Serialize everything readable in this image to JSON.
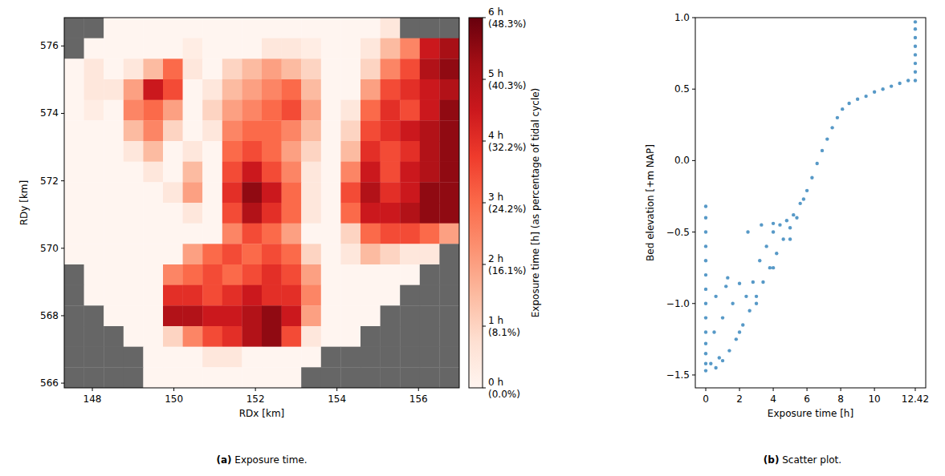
{
  "chart_data": [
    {
      "type": "heatmap",
      "caption": {
        "letter": "(a)",
        "text": "Exposure time."
      },
      "x_label": "RDx [km]",
      "y_label": "RDy [km]",
      "xlim": [
        147.31,
        157.0
      ],
      "ylim": [
        565.86,
        576.84
      ],
      "xticks": [
        148,
        150,
        152,
        154,
        156
      ],
      "yticks": [
        566,
        568,
        570,
        572,
        574,
        576
      ],
      "cells": [
        [
          null,
          null,
          0,
          0,
          0,
          0,
          0,
          0,
          0,
          0,
          0,
          0,
          0,
          0,
          0,
          0,
          0.5,
          null,
          null,
          null
        ],
        [
          null,
          0,
          0,
          0,
          0,
          0,
          0.3,
          0,
          0,
          0,
          0.5,
          0.5,
          0.3,
          0,
          0,
          0.5,
          1.5,
          2.5,
          4.5,
          5.2
        ],
        [
          0,
          0.5,
          0,
          0.5,
          1.5,
          3,
          0.5,
          0,
          1,
          1.5,
          2,
          1.5,
          1,
          0,
          0,
          1,
          2.5,
          3.5,
          5,
          5.5
        ],
        [
          0,
          0.5,
          0.5,
          2,
          4.5,
          3.5,
          0,
          0.5,
          1.5,
          2,
          2.5,
          3,
          1.5,
          0,
          0,
          2,
          3.5,
          4,
          4.5,
          5
        ],
        [
          0,
          0.3,
          0,
          2.5,
          3,
          2,
          0,
          1,
          2,
          2.5,
          3,
          3.5,
          2,
          0,
          0.5,
          3,
          4,
          3.5,
          4.5,
          5.5
        ],
        [
          0,
          0,
          0,
          1.5,
          2.5,
          1,
          0,
          0.5,
          2.5,
          3,
          3,
          2.5,
          1.5,
          0,
          1,
          3.5,
          4,
          4.5,
          5,
          5.5
        ],
        [
          0,
          0,
          0,
          0.5,
          1.5,
          0,
          0.5,
          0,
          3,
          3.5,
          3,
          2,
          1,
          0,
          1.5,
          4,
          3.5,
          4,
          5,
          5.5
        ],
        [
          0,
          0,
          0,
          0,
          0.5,
          0,
          1.5,
          0,
          3.5,
          4.5,
          3.5,
          2.5,
          0.5,
          0,
          2.5,
          4.5,
          3.5,
          4.5,
          5,
          5.5
        ],
        [
          0,
          0,
          0,
          0,
          0,
          0.5,
          2,
          0,
          4,
          5.5,
          4.5,
          3,
          0.5,
          0,
          3.5,
          5,
          4,
          4.5,
          5.5,
          5.5
        ],
        [
          0,
          0,
          0,
          0,
          0,
          0,
          0.5,
          0,
          3.5,
          5,
          4,
          3,
          0.5,
          0,
          3,
          4.5,
          4.5,
          5,
          5.5,
          5.5
        ],
        [
          0,
          0,
          0,
          0,
          0,
          0,
          0,
          0,
          2.5,
          3.5,
          3,
          2,
          0,
          0,
          1,
          3,
          3.5,
          3.5,
          3,
          2
        ],
        [
          0,
          0,
          0,
          0,
          0,
          0,
          2,
          3,
          3.5,
          3,
          3.5,
          3,
          1,
          0,
          0.5,
          1.5,
          1,
          0.5,
          0.5,
          null
        ],
        [
          null,
          0,
          0,
          0,
          0,
          2.5,
          3,
          3.5,
          3,
          3.5,
          4,
          3.5,
          2,
          0,
          0,
          0,
          0,
          0,
          null,
          null
        ],
        [
          null,
          0,
          0,
          0,
          0,
          4,
          4,
          3.5,
          4,
          4.5,
          4,
          4,
          2.5,
          0,
          0,
          0,
          0,
          null,
          null,
          null
        ],
        [
          null,
          null,
          0,
          0,
          0,
          5,
          5,
          4.5,
          4.5,
          5,
          5.5,
          4.5,
          2,
          0,
          0,
          0,
          null,
          null,
          null,
          null
        ],
        [
          null,
          null,
          null,
          0,
          0,
          1,
          2.5,
          3.5,
          4,
          5,
          5.5,
          3.5,
          0.5,
          0,
          0,
          null,
          null,
          null,
          null,
          null
        ],
        [
          null,
          null,
          null,
          null,
          0,
          0,
          0,
          0.5,
          0.5,
          0,
          0,
          0,
          0,
          null,
          null,
          null,
          null,
          null,
          null,
          null
        ],
        [
          null,
          null,
          null,
          null,
          0,
          0,
          0,
          0,
          0,
          0,
          0,
          0,
          null,
          null,
          null,
          null,
          null,
          null,
          null,
          null
        ]
      ],
      "colorbar": {
        "label": "Exposure time [h] (as percentage of tidal cycle)",
        "range": [
          0,
          6
        ],
        "ticks": [
          {
            "value": 0,
            "label": "0 h\n(0.0%)"
          },
          {
            "value": 1,
            "label": "1 h\n(8.1%)"
          },
          {
            "value": 2,
            "label": "2 h\n(16.1%)"
          },
          {
            "value": 3,
            "label": "3 h\n(24.2%)"
          },
          {
            "value": 4,
            "label": "4 h\n(32.2%)"
          },
          {
            "value": 5,
            "label": "5 h\n(40.3%)"
          },
          {
            "value": 6,
            "label": "6 h\n(48.3%)"
          }
        ]
      }
    },
    {
      "type": "scatter",
      "caption": {
        "letter": "(b)",
        "text": "Scatter plot."
      },
      "x_label": "Exposure time [h]",
      "y_label": "Bed elevation [+m NAP]",
      "color": "#1f77b4",
      "marker": "circle",
      "xlim": [
        -0.62,
        13.04
      ],
      "ylim": [
        -1.59,
        1.0
      ],
      "xticks": [
        0,
        2,
        4,
        6,
        8,
        10,
        12.42
      ],
      "yticks": [
        {
          "value": -1.5,
          "label": "−1.5"
        },
        {
          "value": -1.0,
          "label": "−1.0"
        },
        {
          "value": -0.5,
          "label": "−0.5"
        },
        {
          "value": 0.0,
          "label": "0.0"
        },
        {
          "value": 0.5,
          "label": "0.5"
        },
        {
          "value": 1.0,
          "label": "1.0"
        }
      ],
      "x": [
        0,
        0,
        0,
        0,
        0,
        0,
        0,
        0,
        0,
        0,
        0,
        0,
        0,
        0,
        12.42,
        12.42,
        12.42,
        12.42,
        12.42,
        12.42,
        12.42,
        12.42,
        0.3,
        0.5,
        0.6,
        0.8,
        1.0,
        1.2,
        1.4,
        1.6,
        1.8,
        2.0,
        2.2,
        2.4,
        2.6,
        2.8,
        3.0,
        3.2,
        3.4,
        3.6,
        3.8,
        4.0,
        4.2,
        4.4,
        4.6,
        4.8,
        5.0,
        5.2,
        5.4,
        5.6,
        5.8,
        6.0,
        6.3,
        6.6,
        6.9,
        7.2,
        7.5,
        7.8,
        8.1,
        8.5,
        9.0,
        9.5,
        10.0,
        10.5,
        11.0,
        11.5,
        12.0,
        2.5,
        3.3,
        4.0,
        1.3,
        1.0,
        2.0,
        3.0,
        4.0,
        5.0,
        0.6
      ],
      "values": [
        -1.47,
        -1.42,
        -1.35,
        -1.28,
        -1.2,
        -1.1,
        -1.0,
        -0.9,
        -0.8,
        -0.7,
        -0.6,
        -0.5,
        -0.4,
        -0.32,
        0.56,
        0.62,
        0.68,
        0.74,
        0.8,
        0.86,
        0.92,
        0.97,
        -1.42,
        -1.2,
        -0.95,
        -1.38,
        -1.1,
        -0.88,
        -1.33,
        -1.0,
        -1.25,
        -0.86,
        -1.15,
        -0.95,
        -1.05,
        -0.85,
        -0.95,
        -0.7,
        -0.85,
        -0.6,
        -0.75,
        -0.5,
        -0.65,
        -0.45,
        -0.55,
        -0.42,
        -0.47,
        -0.38,
        -0.4,
        -0.3,
        -0.27,
        -0.21,
        -0.12,
        -0.02,
        0.07,
        0.15,
        0.23,
        0.3,
        0.36,
        0.4,
        0.43,
        0.45,
        0.48,
        0.5,
        0.52,
        0.54,
        0.56,
        -0.5,
        -0.45,
        -0.44,
        -0.82,
        -1.4,
        -1.2,
        -1.0,
        -0.75,
        -0.55,
        -1.45
      ]
    }
  ]
}
